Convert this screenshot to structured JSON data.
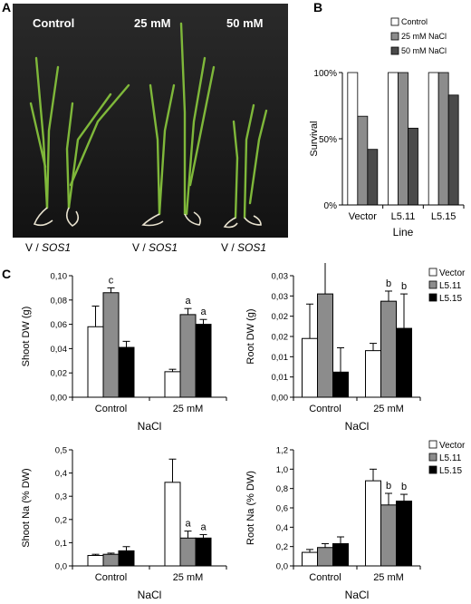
{
  "panels": {
    "a": "A",
    "b": "B",
    "c": "C"
  },
  "photo": {
    "labels": [
      "Control",
      "25 mM",
      "50 mM"
    ]
  },
  "genotype_labels": [
    {
      "prefix": "V / ",
      "gene": "SOS1"
    },
    {
      "prefix": "V / ",
      "gene": "SOS1"
    },
    {
      "prefix": "V / ",
      "gene": "SOS1"
    }
  ],
  "colors": {
    "control": "#ffffff",
    "mid": "#8c8c8c",
    "high": "#000000",
    "b_high": "#4a4a4a"
  },
  "chart_data": [
    {
      "id": "survival",
      "type": "bar",
      "ylabel": "Survival",
      "xlabel": "Line",
      "categories": [
        "Vector",
        "L5.11",
        "L5.15"
      ],
      "ylim": [
        0,
        100
      ],
      "yticks": [
        0,
        50,
        100
      ],
      "ytick_labels": [
        "0%",
        "50%",
        "100%"
      ],
      "legend": [
        "Control",
        "25 mM NaCl",
        "50 mM NaCl"
      ],
      "legend_position": "top-right",
      "series": [
        {
          "name": "Control",
          "values": [
            100,
            100,
            100
          ]
        },
        {
          "name": "25 mM NaCl",
          "values": [
            67,
            100,
            100
          ]
        },
        {
          "name": "50 mM NaCl",
          "values": [
            42,
            58,
            83
          ]
        }
      ]
    },
    {
      "id": "shoot_dw",
      "type": "bar",
      "ylabel": "Shoot DW (g)",
      "xlabel": "NaCl",
      "categories": [
        "Control",
        "25 mM"
      ],
      "ylim": [
        0,
        0.1
      ],
      "yticks": [
        0,
        0.02,
        0.04,
        0.06,
        0.08,
        0.1
      ],
      "ytick_labels": [
        "0,00",
        "0,02",
        "0,04",
        "0,06",
        "0,08",
        "0,10"
      ],
      "series": [
        {
          "name": "Vector",
          "values": [
            0.058,
            0.021
          ],
          "errors": [
            0.017,
            0.002
          ]
        },
        {
          "name": "L5.11",
          "values": [
            0.086,
            0.068
          ],
          "errors": [
            0.004,
            0.005
          ]
        },
        {
          "name": "L5.15",
          "values": [
            0.041,
            0.06
          ],
          "errors": [
            0.005,
            0.004
          ]
        }
      ],
      "annotations": [
        {
          "group": 0,
          "series": 1,
          "text": "c"
        },
        {
          "group": 1,
          "series": 1,
          "text": "a"
        },
        {
          "group": 1,
          "series": 2,
          "text": "a"
        }
      ]
    },
    {
      "id": "root_dw",
      "type": "bar",
      "ylabel": "Root DW (g)",
      "xlabel": "NaCl",
      "categories": [
        "Control",
        "25 mM"
      ],
      "ylim": [
        0,
        0.03
      ],
      "yticks": [
        0,
        0.01,
        0.02,
        0.03
      ],
      "ytick_labels": [
        "0,00",
        "0,01",
        "0,01",
        "0,02",
        "0,02",
        "0,03",
        "0,03"
      ],
      "ytick_label_values": [
        0,
        0.005,
        0.01,
        0.015,
        0.02,
        0.025,
        0.03
      ],
      "legend": [
        "Vector",
        "L5.11",
        "L5.15"
      ],
      "legend_position": "top-right",
      "series": [
        {
          "name": "Vector",
          "values": [
            0.0145,
            0.0115
          ],
          "errors": [
            0.0085,
            0.0018
          ]
        },
        {
          "name": "L5.11",
          "values": [
            0.0255,
            0.0237
          ],
          "errors": [
            0.0095,
            0.0025
          ]
        },
        {
          "name": "L5.15",
          "values": [
            0.0062,
            0.017
          ],
          "errors": [
            0.006,
            0.0085
          ]
        }
      ],
      "annotations": [
        {
          "group": 1,
          "series": 1,
          "text": "b"
        },
        {
          "group": 1,
          "series": 2,
          "text": "b"
        }
      ]
    },
    {
      "id": "shoot_na",
      "type": "bar",
      "ylabel": "Shoot Na (% DW)",
      "xlabel": "NaCl",
      "categories": [
        "Control",
        "25 mM"
      ],
      "ylim": [
        0,
        0.5
      ],
      "yticks": [
        0,
        0.1,
        0.2,
        0.3,
        0.4,
        0.5
      ],
      "ytick_labels": [
        "0,0",
        "0,1",
        "0,2",
        "0,3",
        "0,4",
        "0,5"
      ],
      "series": [
        {
          "name": "Vector",
          "values": [
            0.045,
            0.36
          ],
          "errors": [
            0.005,
            0.1
          ]
        },
        {
          "name": "L5.11",
          "values": [
            0.05,
            0.12
          ],
          "errors": [
            0.005,
            0.03
          ]
        },
        {
          "name": "L5.15",
          "values": [
            0.065,
            0.12
          ],
          "errors": [
            0.018,
            0.015
          ]
        }
      ],
      "annotations": [
        {
          "group": 1,
          "series": 1,
          "text": "a"
        },
        {
          "group": 1,
          "series": 2,
          "text": "a"
        }
      ]
    },
    {
      "id": "root_na",
      "type": "bar",
      "ylabel": "Root Na (% DW)",
      "xlabel": "NaCl",
      "categories": [
        "Control",
        "25 mM"
      ],
      "ylim": [
        0,
        1.2
      ],
      "yticks": [
        0,
        0.2,
        0.4,
        0.6,
        0.8,
        1.0,
        1.2
      ],
      "ytick_labels": [
        "0,0",
        "0,2",
        "0,4",
        "0,6",
        "0,8",
        "1,0",
        "1,2"
      ],
      "legend": [
        "Vector",
        "L5.11",
        "L5.15"
      ],
      "legend_position": "top-right",
      "series": [
        {
          "name": "Vector",
          "values": [
            0.14,
            0.88
          ],
          "errors": [
            0.03,
            0.12
          ]
        },
        {
          "name": "L5.11",
          "values": [
            0.19,
            0.63
          ],
          "errors": [
            0.04,
            0.12
          ]
        },
        {
          "name": "L5.15",
          "values": [
            0.23,
            0.67
          ],
          "errors": [
            0.07,
            0.07
          ]
        }
      ],
      "annotations": [
        {
          "group": 1,
          "series": 1,
          "text": "b"
        },
        {
          "group": 1,
          "series": 2,
          "text": "b"
        }
      ]
    }
  ]
}
